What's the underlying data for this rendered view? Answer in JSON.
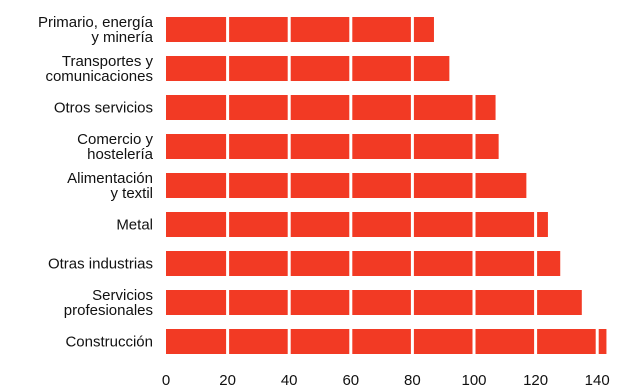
{
  "chart_data": {
    "type": "bar",
    "orientation": "horizontal",
    "title": "",
    "xlabel": "",
    "ylabel": "",
    "categories": [
      [
        "Primario, energía",
        "y minería"
      ],
      [
        "Transportes y",
        "comunicaciones"
      ],
      [
        "Otros servicios"
      ],
      [
        "Comercio y",
        "hostelería"
      ],
      [
        "Alimentación",
        "y textil"
      ],
      [
        "Metal"
      ],
      [
        "Otras industrias"
      ],
      [
        "Servicios",
        "profesionales"
      ],
      [
        "Construcción"
      ]
    ],
    "values": [
      87,
      92,
      107,
      108,
      117,
      124,
      128,
      135,
      143
    ],
    "xlim": [
      0,
      145
    ],
    "xticks": [
      0,
      20,
      40,
      60,
      80,
      100,
      120,
      140
    ],
    "grid": "vertical white separators every 20 units",
    "bar_color": "#f23a24",
    "separator_color": "#ffffff",
    "legend": "none"
  }
}
